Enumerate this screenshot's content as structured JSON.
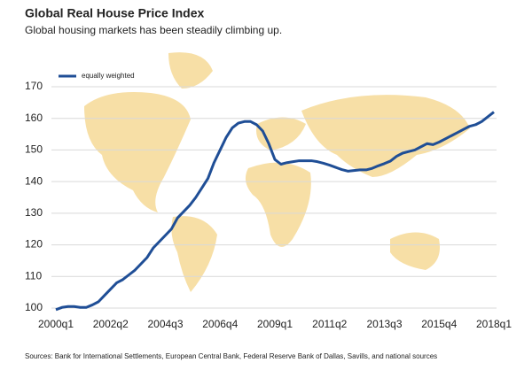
{
  "chart_data": {
    "type": "line",
    "title": "Global Real House Price Index",
    "subtitle": "Global housing markets has been steadily climbing up.",
    "source": "Sources: Bank for International Settlements, European Central Bank, Federal Reserve Bank of Dallas, Savills, and national sources",
    "categories": [
      "2000q1",
      null,
      null,
      null,
      null,
      null,
      null,
      null,
      null,
      "2002q2",
      null,
      null,
      null,
      null,
      null,
      null,
      null,
      null,
      "2004q3",
      null,
      null,
      null,
      null,
      null,
      null,
      null,
      null,
      "2006q4",
      null,
      null,
      null,
      null,
      null,
      null,
      null,
      null,
      "2009q1",
      null,
      null,
      null,
      null,
      null,
      null,
      null,
      null,
      "2011q2",
      null,
      null,
      null,
      null,
      null,
      null,
      null,
      null,
      "2013q3",
      null,
      null,
      null,
      null,
      null,
      null,
      null,
      null,
      "2015q4",
      null,
      null,
      null,
      null,
      null,
      null,
      null,
      null,
      "2018q1"
    ],
    "series": [
      {
        "name": "equally weighted",
        "color": "#1f4e96",
        "values": [
          99.5,
          100.2,
          100.5,
          100.5,
          100.2,
          100.2,
          101,
          102,
          104,
          106,
          108,
          109,
          110.5,
          112,
          114,
          116,
          119,
          121,
          123,
          125,
          128.5,
          130.5,
          132.5,
          135,
          138,
          141,
          146,
          150,
          154,
          157,
          158.5,
          159,
          159,
          158,
          156,
          152,
          147,
          145.5,
          146,
          146.3,
          146.6,
          146.6,
          146.6,
          146.3,
          145.8,
          145.2,
          144.5,
          143.8,
          143.3,
          143.5,
          143.7,
          143.7,
          144.2,
          145,
          145.7,
          146.5,
          148,
          149,
          149.5,
          150,
          151,
          152,
          151.7,
          152.5,
          153.5,
          154.5,
          155.5,
          156.5,
          157.5,
          158,
          159,
          160.5,
          162
        ]
      }
    ],
    "ylim": [
      100,
      170
    ],
    "yticks": [
      100,
      110,
      120,
      130,
      140,
      150,
      160,
      170
    ],
    "grid": true
  }
}
